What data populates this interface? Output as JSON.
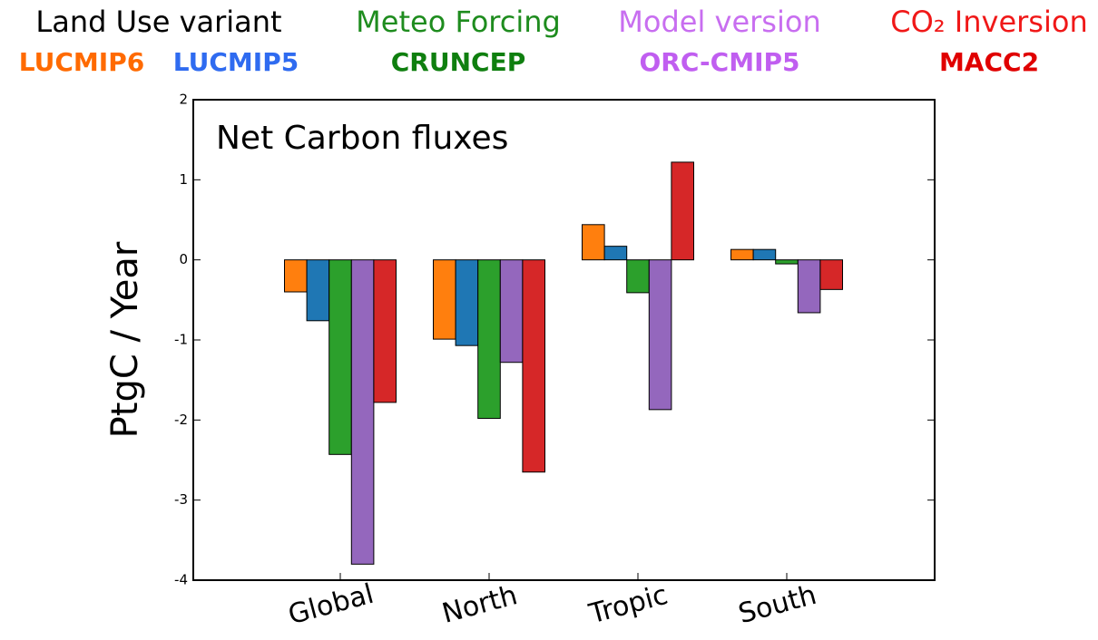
{
  "chart_data": {
    "type": "bar",
    "title": "Net Carbon fluxes",
    "y_label": "PtgC / Year",
    "categories": [
      "Global",
      "North",
      "Tropic",
      "South"
    ],
    "ylim": [
      -4,
      2
    ],
    "yticks": [
      -4,
      -3,
      -2,
      -1,
      0,
      1,
      2
    ],
    "legend_groups": [
      {
        "title": "Land Use variant",
        "color": "#000000",
        "entries": [
          {
            "name": "LUCMIP6",
            "color": "#ff6a00"
          },
          {
            "name": "LUCMIP5",
            "color": "#2f6bf0"
          }
        ]
      },
      {
        "title": "Meteo Forcing",
        "color": "#1e8c1e",
        "entries": [
          {
            "name": "CRUNCEP",
            "color": "#0f7f0f"
          }
        ]
      },
      {
        "title": "Model version",
        "color": "#c86ef0",
        "entries": [
          {
            "name": "ORC-CMIP5",
            "color": "#c05ef0"
          }
        ]
      },
      {
        "title": "CO₂ Inversion",
        "color": "#f01818",
        "entries": [
          {
            "name": "MACC2",
            "color": "#e00000"
          }
        ]
      }
    ],
    "series": [
      {
        "color": "#ff7f0e",
        "values": [
          -0.4,
          -0.99,
          0.44,
          0.13
        ]
      },
      {
        "color": "#1f77b4",
        "values": [
          -0.76,
          -1.07,
          0.17,
          0.13
        ]
      },
      {
        "color": "#2ca02c",
        "values": [
          -2.43,
          -1.98,
          -0.41,
          -0.05
        ]
      },
      {
        "color": "#9467bd",
        "values": [
          -3.8,
          -1.28,
          -1.87,
          -0.66
        ]
      },
      {
        "color": "#d62728",
        "values": [
          -1.78,
          -2.65,
          1.22,
          -0.37
        ]
      }
    ]
  }
}
